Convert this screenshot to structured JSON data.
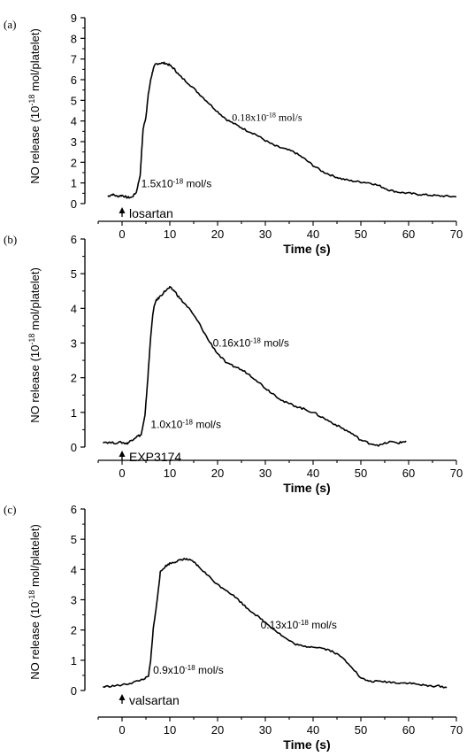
{
  "chart_data": [
    {
      "type": "line",
      "panel_label": "(a)",
      "xlabel": "Time (s)",
      "ylabel": "NO release (10^-18 mol/platelet)",
      "xlim": [
        -5,
        70
      ],
      "ylim": [
        0,
        9
      ],
      "xticks": [
        0,
        10,
        20,
        30,
        40,
        50,
        60,
        70
      ],
      "yticks": [
        0,
        1,
        2,
        3,
        4,
        5,
        6,
        7,
        8,
        9
      ],
      "marker": {
        "x": 0,
        "label": "losartan"
      },
      "annotations": [
        {
          "text": "1.5x10-18 mol/s",
          "mantissa": "1.5x10",
          "exp": "-18",
          "unit": " mol/s",
          "x": 4,
          "y": 0.8,
          "font": "sans"
        },
        {
          "text": "0.18x10-18 mol/s",
          "mantissa": "0.18x10",
          "exp": "-18",
          "unit": " mol/s",
          "x": 23,
          "y": 4.0,
          "font": "serif"
        }
      ],
      "series": [
        {
          "x": [
            -3,
            -2,
            -1,
            0,
            1,
            2,
            3,
            3.8,
            4.4,
            5,
            5.5,
            6,
            6.5,
            7,
            8,
            9,
            10,
            11,
            12,
            14,
            16,
            18,
            20,
            22,
            24,
            26,
            28,
            30,
            32,
            34,
            36,
            38,
            40,
            42,
            44,
            46,
            48,
            50,
            52,
            54,
            56,
            58,
            60,
            62,
            64,
            66,
            68,
            70
          ],
          "y": [
            0.35,
            0.45,
            0.35,
            0.4,
            0.3,
            0.3,
            0.55,
            1.4,
            3.6,
            4.2,
            5.3,
            6.0,
            6.5,
            6.75,
            6.8,
            6.8,
            6.7,
            6.5,
            6.2,
            5.8,
            5.35,
            4.9,
            4.45,
            4.05,
            3.8,
            3.55,
            3.35,
            3.05,
            2.8,
            2.65,
            2.5,
            2.2,
            1.85,
            1.55,
            1.35,
            1.2,
            1.1,
            1.05,
            1.0,
            0.85,
            0.65,
            0.55,
            0.5,
            0.45,
            0.42,
            0.38,
            0.36,
            0.33
          ]
        }
      ]
    },
    {
      "type": "line",
      "panel_label": "(b)",
      "xlabel": "Time (s)",
      "ylabel": "NO release (10^-18 mol/platelet)",
      "xlim": [
        -5,
        70
      ],
      "ylim": [
        0,
        6
      ],
      "xticks": [
        0,
        10,
        20,
        30,
        40,
        50,
        60,
        70
      ],
      "yticks": [
        0,
        1,
        2,
        3,
        4,
        5,
        6
      ],
      "marker": {
        "x": 0,
        "label": "EXP3174"
      },
      "annotations": [
        {
          "text": "1.0x10-18 mol/s",
          "mantissa": "1.0x10",
          "exp": "-18",
          "unit": " mol/s",
          "x": 6,
          "y": 0.55,
          "font": "sans"
        },
        {
          "text": "0.16x10-18 mol/s",
          "mantissa": "0.16x10",
          "exp": "-18",
          "unit": " mol/s",
          "x": 19,
          "y": 2.9,
          "font": "sans"
        }
      ],
      "series": [
        {
          "x": [
            -4,
            -2,
            0,
            1,
            2,
            3,
            4,
            4.8,
            5.4,
            6,
            6.5,
            7,
            8,
            9,
            10,
            11,
            12,
            14,
            16,
            18,
            20,
            22,
            24,
            26,
            28,
            30,
            32,
            34,
            36,
            38,
            40,
            42,
            44,
            46,
            48,
            50,
            52,
            54,
            56,
            58,
            59.5
          ],
          "y": [
            0.15,
            0.12,
            0.13,
            0.1,
            0.2,
            0.3,
            0.35,
            0.9,
            2.0,
            3.2,
            3.9,
            4.2,
            4.35,
            4.5,
            4.6,
            4.5,
            4.3,
            4.0,
            3.6,
            3.1,
            2.7,
            2.4,
            2.3,
            2.15,
            1.95,
            1.7,
            1.5,
            1.3,
            1.2,
            1.1,
            1.0,
            0.85,
            0.7,
            0.55,
            0.4,
            0.2,
            0.1,
            0.05,
            0.15,
            0.12,
            0.17
          ]
        }
      ]
    },
    {
      "type": "line",
      "panel_label": "(c)",
      "xlabel": "Time (s)",
      "ylabel": "NO release (10^-18 mol/platelet)",
      "xlim": [
        -5,
        70
      ],
      "ylim": [
        0,
        6
      ],
      "xticks": [
        0,
        10,
        20,
        30,
        40,
        50,
        60,
        70
      ],
      "yticks": [
        0,
        1,
        2,
        3,
        4,
        5,
        6
      ],
      "marker": {
        "x": 0,
        "label": "valsartan"
      },
      "annotations": [
        {
          "text": "0.9x10-18 mol/s",
          "mantissa": "0.9x10",
          "exp": "-18",
          "unit": " mol/s",
          "x": 6.5,
          "y": 0.55,
          "font": "sans"
        },
        {
          "text": "0.13x10-18 mol/s",
          "mantissa": "0.13x10",
          "exp": "-18",
          "unit": " mol/s",
          "x": 29,
          "y": 2.05,
          "font": "sans"
        }
      ],
      "series": [
        {
          "x": [
            -4,
            -2,
            0,
            2,
            4,
            5.5,
            6,
            6.5,
            7.2,
            8,
            9,
            10,
            11,
            12,
            13,
            14,
            15,
            16,
            18,
            20,
            22,
            24,
            26,
            28,
            30,
            32,
            34,
            36,
            38,
            40,
            42,
            44,
            46,
            48,
            50,
            52,
            54,
            56,
            58,
            60,
            62,
            64,
            66,
            68
          ],
          "y": [
            0.12,
            0.15,
            0.18,
            0.25,
            0.35,
            0.45,
            1.0,
            2.0,
            2.8,
            3.9,
            4.1,
            4.2,
            4.25,
            4.3,
            4.35,
            4.32,
            4.25,
            4.1,
            3.8,
            3.5,
            3.3,
            3.05,
            2.75,
            2.5,
            2.25,
            2.0,
            1.75,
            1.55,
            1.45,
            1.45,
            1.4,
            1.3,
            1.1,
            0.8,
            0.4,
            0.3,
            0.3,
            0.28,
            0.25,
            0.25,
            0.2,
            0.15,
            0.15,
            0.1
          ]
        }
      ]
    }
  ]
}
